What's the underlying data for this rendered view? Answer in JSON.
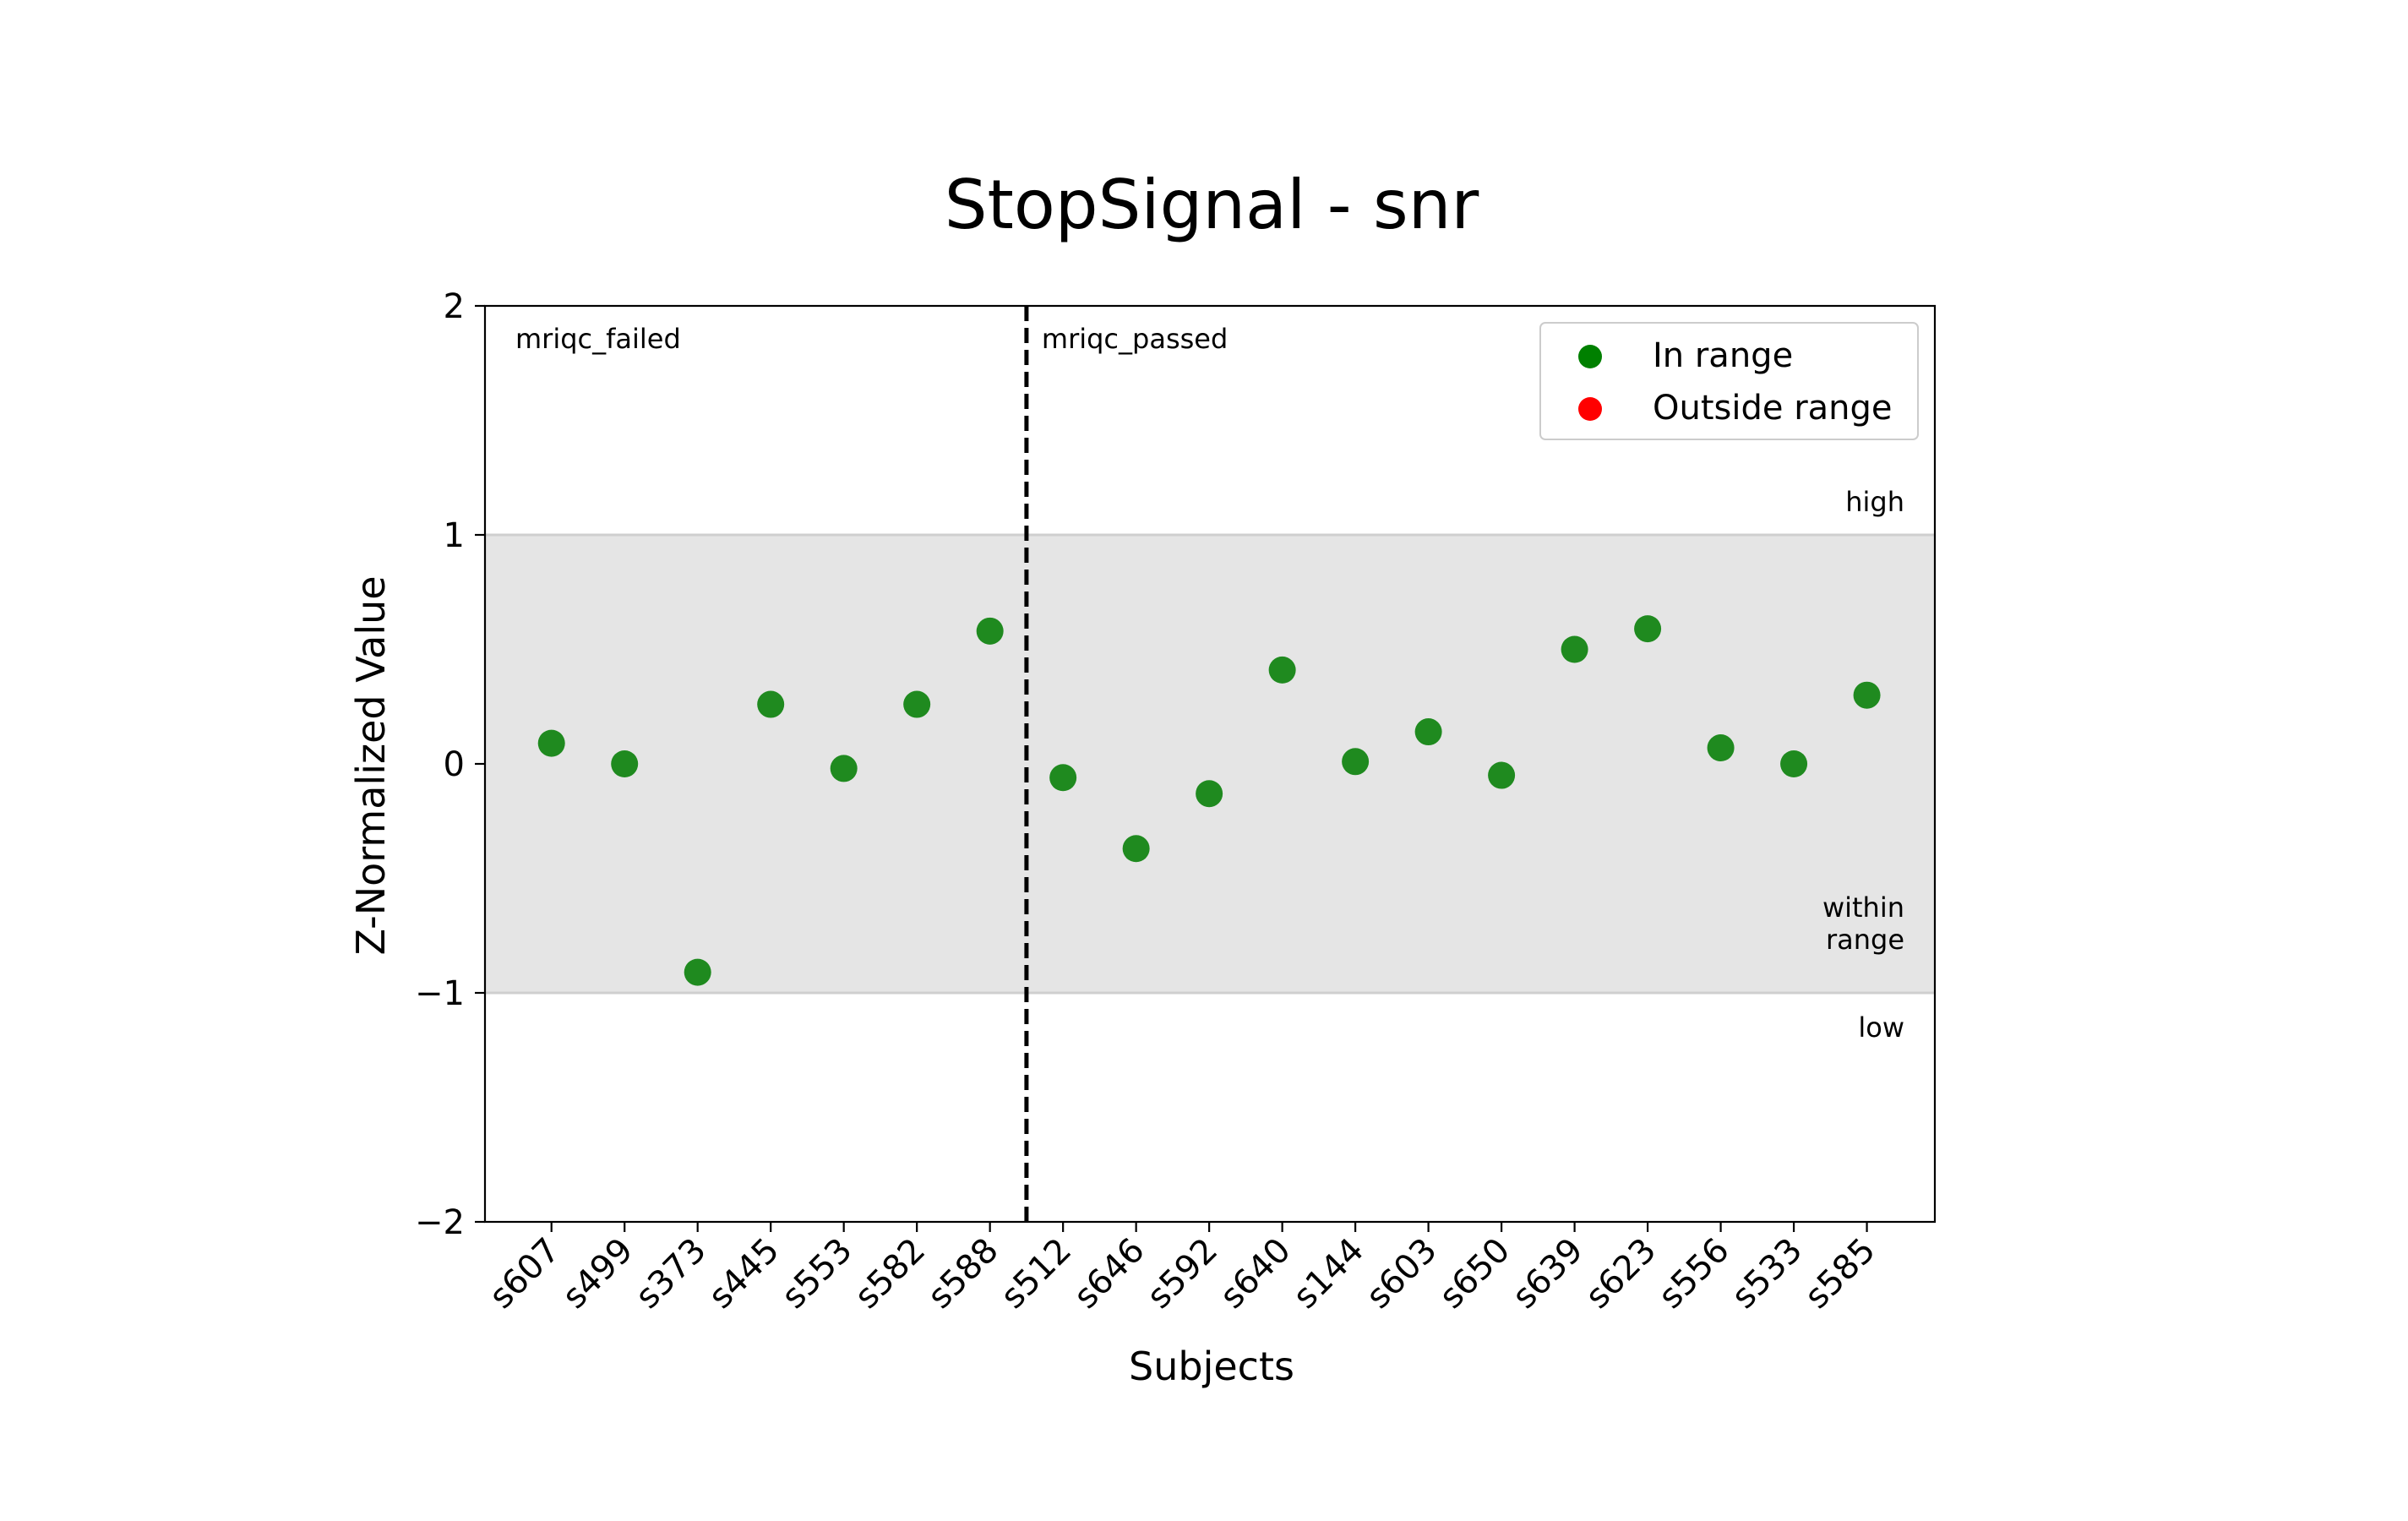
{
  "chart_data": {
    "type": "scatter",
    "title": "StopSignal - snr",
    "xlabel": "Subjects",
    "ylabel": "Z-Normalized Value",
    "ylim": [
      -2,
      2
    ],
    "yticks": [
      2,
      1,
      0,
      -1,
      -2
    ],
    "ytick_labels": [
      "2",
      "1",
      "0",
      "−1",
      "−2"
    ],
    "grid": false,
    "band": {
      "from": -1,
      "to": 1,
      "color": "#e5e5e5"
    },
    "band_labels": {
      "high": "high",
      "within": [
        "within",
        "range"
      ],
      "low": "low"
    },
    "groups": [
      {
        "name": "mriqc_failed",
        "start_index": 0
      },
      {
        "name": "mriqc_passed",
        "start_index": 7
      }
    ],
    "categories": [
      "s607",
      "s499",
      "s373",
      "s445",
      "s553",
      "s582",
      "s588",
      "s512",
      "s646",
      "s592",
      "s640",
      "s144",
      "s603",
      "s650",
      "s639",
      "s623",
      "s556",
      "s533",
      "s585"
    ],
    "values": [
      0.09,
      0.0,
      -0.91,
      0.26,
      -0.02,
      0.26,
      0.58,
      -0.06,
      -0.37,
      -0.13,
      0.41,
      0.01,
      0.14,
      -0.05,
      0.5,
      0.59,
      0.07,
      0.0,
      0.3
    ],
    "in_range_color": "#1f8a1f",
    "outside_range_color": "#ff0000",
    "legend": {
      "position": "top-right",
      "entries": [
        {
          "label": "In range",
          "color": "#008000"
        },
        {
          "label": "Outside range",
          "color": "#ff0000"
        }
      ]
    }
  }
}
